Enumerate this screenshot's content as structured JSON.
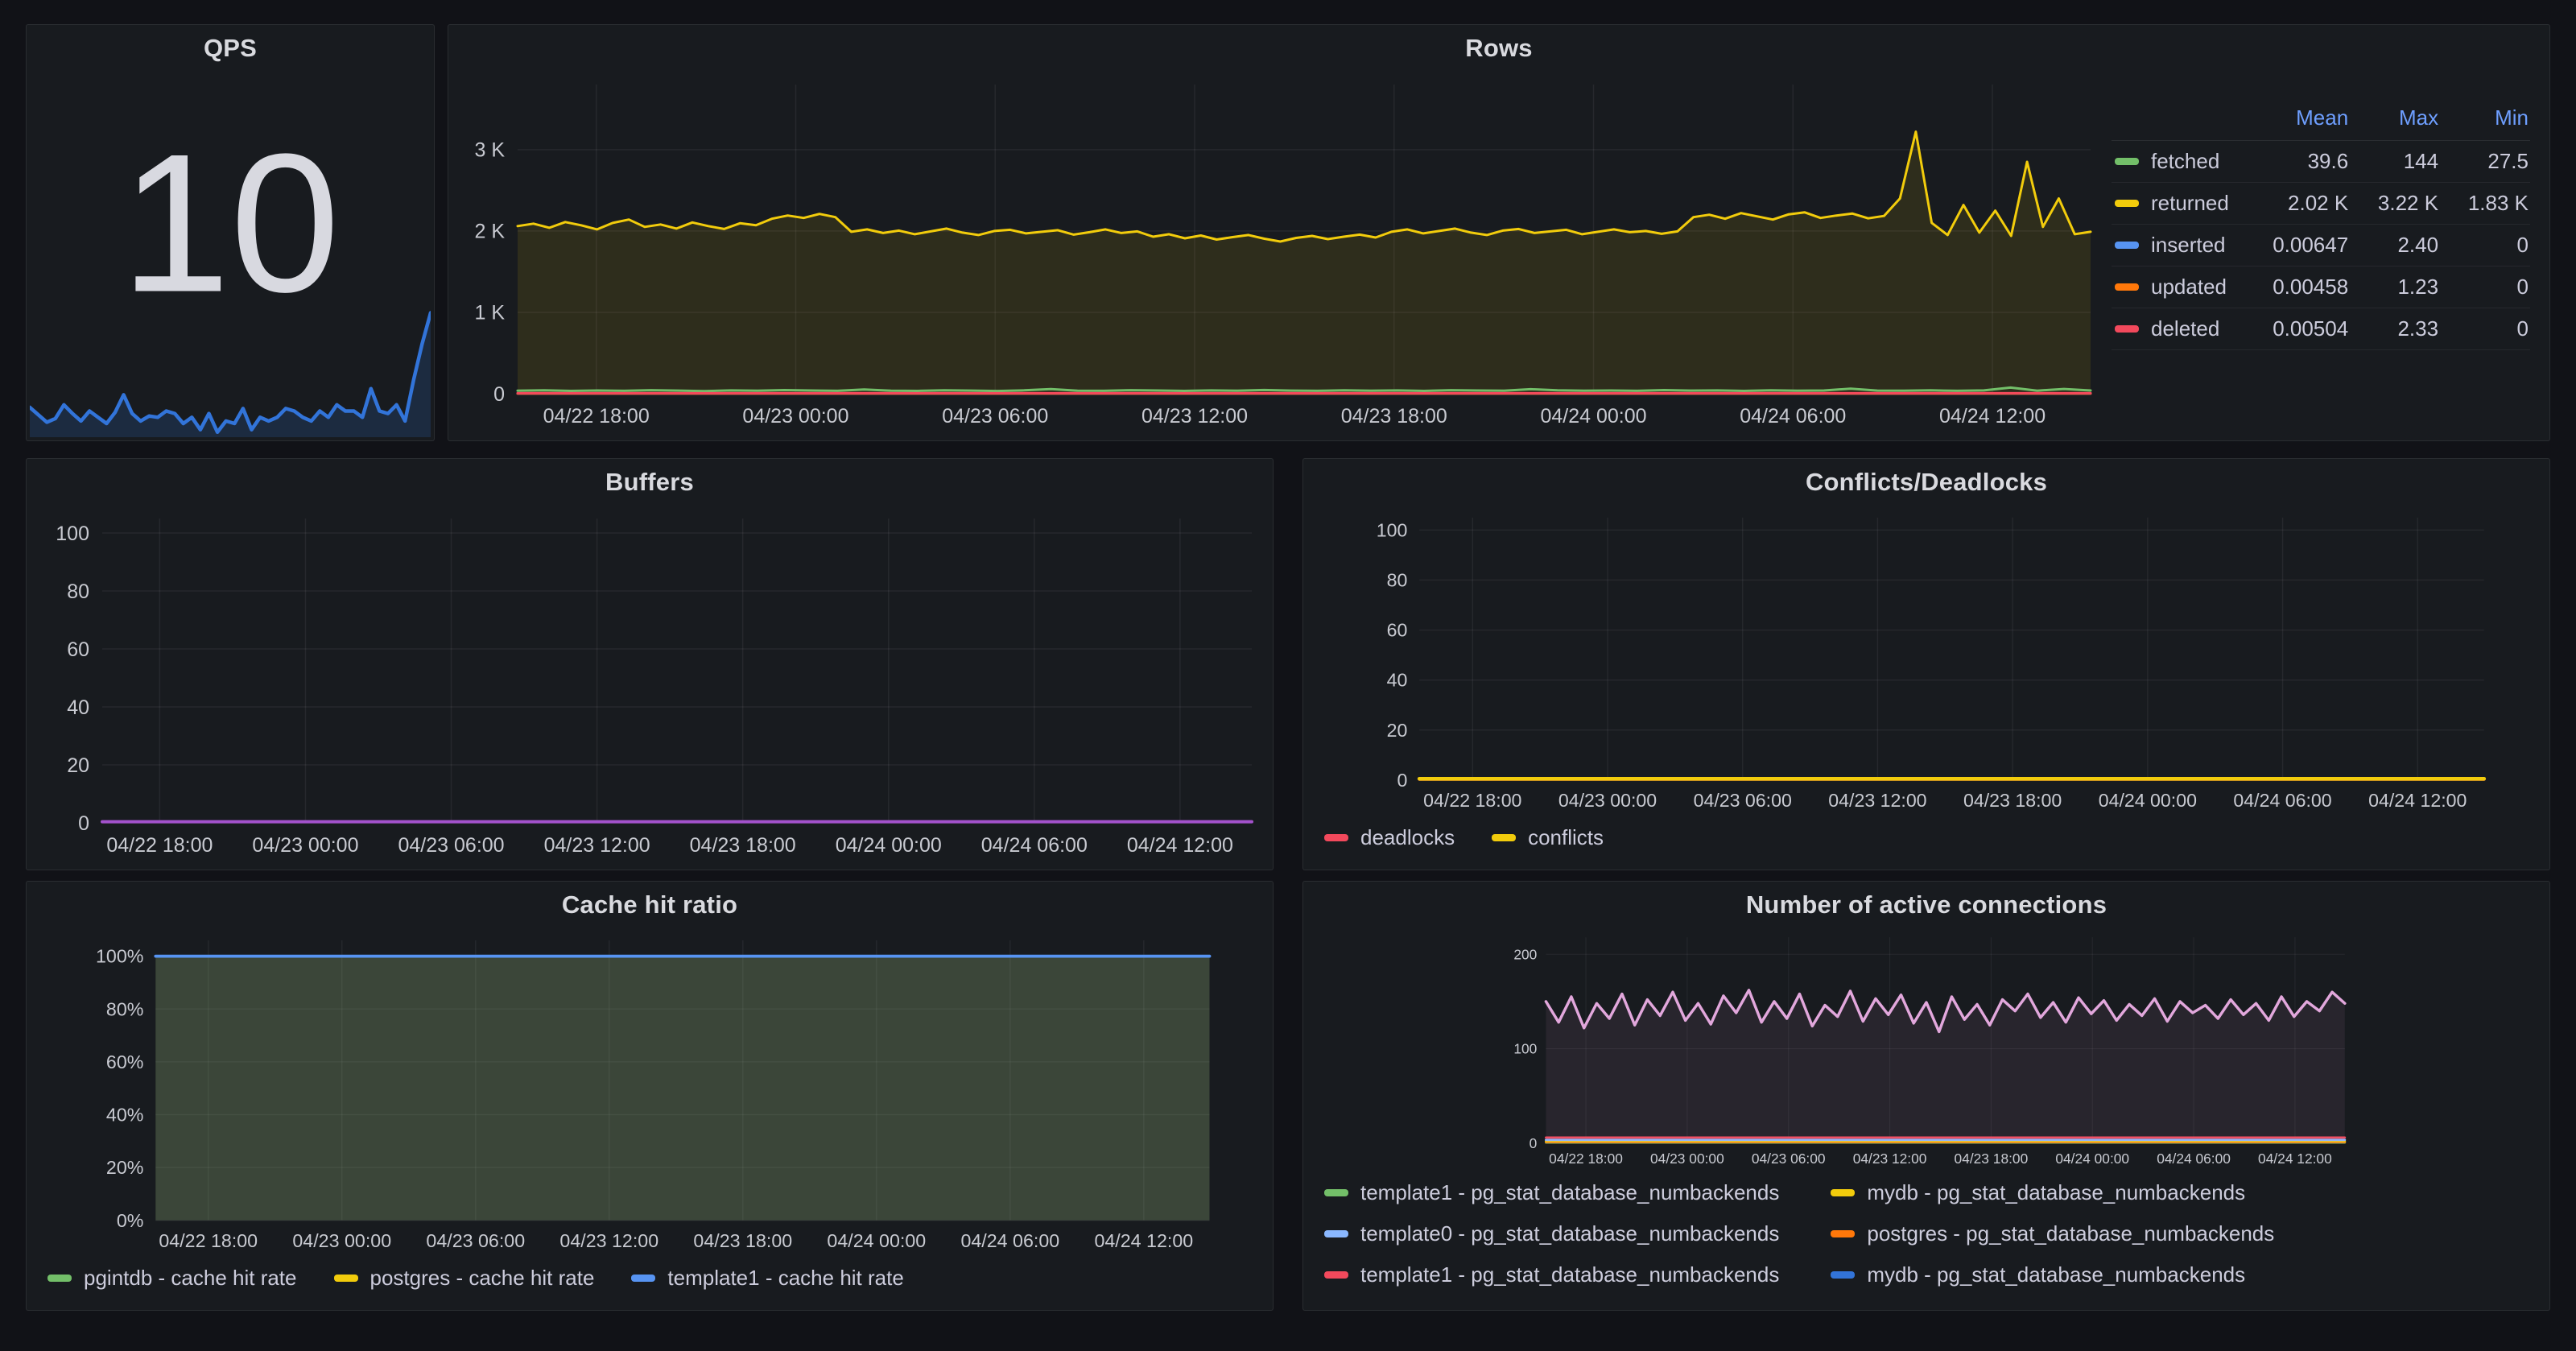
{
  "theme": {
    "page_bg": "#111217",
    "panel_bg": "#181B1F",
    "panel_border": "rgba(204,204,220,0.10)",
    "title_color": "#D9DADF",
    "text_color": "#CCCCDC",
    "axis_color": "#C8CAD1",
    "grid_color": "rgba(204,204,220,0.08)",
    "table_header_color": "#6E9FFF",
    "stat_color": "#D8D9E0",
    "qps_line": "#3274D9"
  },
  "chart_data": [
    {
      "id": "qps",
      "type": "line",
      "title": "QPS",
      "stat_value": "10",
      "ylim": [
        0,
        10.8
      ],
      "margins": [
        0,
        6,
        0,
        2
      ],
      "series": [
        {
          "name": "qps",
          "color": "#3274D9",
          "w": 4.5,
          "fill": "rgba(50,116,217,0.18)",
          "values": [
            2.4,
            1.8,
            1.2,
            1.5,
            2.6,
            1.9,
            1.3,
            2.1,
            1.6,
            1.1,
            2.0,
            3.4,
            1.9,
            1.3,
            1.7,
            1.6,
            2.1,
            1.9,
            1.1,
            1.6,
            0.6,
            1.9,
            0.4,
            1.3,
            1.1,
            2.3,
            0.6,
            1.6,
            1.3,
            1.6,
            2.3,
            2.1,
            1.6,
            1.3,
            2.1,
            1.6,
            2.6,
            2.1,
            2.1,
            1.6,
            3.9,
            2.1,
            1.9,
            2.6,
            1.3,
            4.6,
            7.5,
            10.0
          ]
        }
      ]
    },
    {
      "id": "rows",
      "type": "line",
      "title": "Rows",
      "ylim": [
        0,
        3800
      ],
      "margins": [
        80,
        16,
        20,
        52
      ],
      "xtick_start": 0.05,
      "xtick_step": 0.1268,
      "x_ticks": [
        "04/22 18:00",
        "04/23 00:00",
        "04/23 06:00",
        "04/23 12:00",
        "04/23 18:00",
        "04/24 00:00",
        "04/24 06:00",
        "04/24 12:00"
      ],
      "y_ticks": [
        {
          "v": 0,
          "label": "0"
        },
        {
          "v": 1000,
          "label": "1 K"
        },
        {
          "v": 2000,
          "label": "2 K"
        },
        {
          "v": 3000,
          "label": "3 K"
        }
      ],
      "series": [
        {
          "name": "returned",
          "color": "#F2CC0C",
          "w": 3,
          "fill": "rgba(242,204,12,0.10)",
          "values": [
            2060,
            2090,
            2040,
            2110,
            2070,
            2020,
            2100,
            2140,
            2050,
            2080,
            2030,
            2105,
            2060,
            2025,
            2095,
            2070,
            2150,
            2190,
            2160,
            2210,
            2170,
            1990,
            2020,
            1975,
            2005,
            1960,
            1995,
            2030,
            1980,
            1950,
            2000,
            2015,
            1970,
            1990,
            2010,
            1955,
            1985,
            2020,
            1975,
            1995,
            1930,
            1960,
            1910,
            1945,
            1895,
            1925,
            1950,
            1905,
            1870,
            1915,
            1940,
            1900,
            1930,
            1955,
            1920,
            1990,
            2020,
            1970,
            2000,
            2030,
            1980,
            1950,
            2005,
            2025,
            1975,
            1995,
            2015,
            1960,
            1990,
            2020,
            1985,
            2000,
            1965,
            1995,
            2170,
            2200,
            2150,
            2220,
            2180,
            2140,
            2205,
            2230,
            2160,
            2190,
            2215,
            2155,
            2185,
            2400,
            3220,
            2100,
            1950,
            2320,
            1980,
            2250,
            1940,
            2850,
            2050,
            2400,
            1960,
            1990
          ]
        },
        {
          "name": "fetched",
          "color": "#73BF69",
          "w": 3,
          "values": [
            38,
            42,
            35,
            40,
            36,
            44,
            39,
            33,
            41,
            37,
            45,
            40,
            36,
            52,
            38,
            35,
            43,
            39,
            34,
            42,
            57,
            38,
            36,
            44,
            40,
            35,
            41,
            38,
            46,
            39,
            36,
            43,
            37,
            41,
            35,
            44,
            40,
            38,
            55,
            42,
            37,
            40,
            36,
            45,
            39,
            41,
            35,
            43,
            38,
            40,
            62,
            39,
            37,
            42,
            36,
            41,
            75,
            38,
            58,
            40
          ]
        },
        {
          "name": "inserted",
          "color": "#5794F2",
          "w": 3,
          "values": [
            3,
            3
          ]
        },
        {
          "name": "updated",
          "color": "#FF780A",
          "w": 3,
          "values": [
            2,
            2
          ]
        },
        {
          "name": "deleted",
          "color": "#F2495C",
          "w": 3,
          "values": [
            6,
            6
          ]
        }
      ],
      "legend_table": {
        "headers": [
          "Mean",
          "Max",
          "Min"
        ],
        "rows": [
          {
            "name": "fetched",
            "color": "#73BF69",
            "mean": "39.6",
            "max": "144",
            "min": "27.5"
          },
          {
            "name": "returned",
            "color": "#F2CC0C",
            "mean": "2.02 K",
            "max": "3.22 K",
            "min": "1.83 K"
          },
          {
            "name": "inserted",
            "color": "#5794F2",
            "mean": "0.00647",
            "max": "2.40",
            "min": "0"
          },
          {
            "name": "updated",
            "color": "#FF780A",
            "mean": "0.00458",
            "max": "1.23",
            "min": "0"
          },
          {
            "name": "deleted",
            "color": "#F2495C",
            "mean": "0.00504",
            "max": "2.33",
            "min": "0"
          }
        ]
      }
    },
    {
      "id": "buffers",
      "type": "line",
      "title": "Buffers",
      "ylim": [
        0,
        105
      ],
      "margins": [
        88,
        16,
        20,
        52
      ],
      "xtick_start": 0.05,
      "xtick_step": 0.1268,
      "x_ticks": [
        "04/22 18:00",
        "04/23 00:00",
        "04/23 06:00",
        "04/23 12:00",
        "04/23 18:00",
        "04/24 00:00",
        "04/24 06:00",
        "04/24 12:00"
      ],
      "y_ticks": [
        {
          "v": 0,
          "label": "0"
        },
        {
          "v": 20,
          "label": "20"
        },
        {
          "v": 40,
          "label": "40"
        },
        {
          "v": 60,
          "label": "60"
        },
        {
          "v": 80,
          "label": "80"
        },
        {
          "v": 100,
          "label": "100"
        }
      ],
      "series": [
        {
          "name": "buffers",
          "color": "#A352CC",
          "w": 4,
          "values": [
            0.4,
            0.4
          ]
        }
      ]
    },
    {
      "id": "conflicts",
      "type": "line",
      "title": "Conflicts/Deadlocks",
      "ylim": [
        0,
        105
      ],
      "margins": [
        88,
        16,
        20,
        52
      ],
      "xtick_start": 0.05,
      "xtick_step": 0.1268,
      "x_ticks": [
        "04/22 18:00",
        "04/23 00:00",
        "04/23 06:00",
        "04/23 12:00",
        "04/23 18:00",
        "04/24 00:00",
        "04/24 06:00",
        "04/24 12:00"
      ],
      "y_ticks": [
        {
          "v": 0,
          "label": "0"
        },
        {
          "v": 20,
          "label": "20"
        },
        {
          "v": 40,
          "label": "40"
        },
        {
          "v": 60,
          "label": "60"
        },
        {
          "v": 80,
          "label": "80"
        },
        {
          "v": 100,
          "label": "100"
        }
      ],
      "series": [
        {
          "name": "deadlocks",
          "color": "#F2495C",
          "w": 4,
          "values": [
            0.3,
            0.3
          ]
        },
        {
          "name": "conflicts",
          "color": "#F2CC0C",
          "w": 5,
          "values": [
            0.5,
            0.5
          ]
        }
      ],
      "legend": {
        "layout": "row",
        "items": [
          {
            "label": "deadlocks",
            "color": "#F2495C"
          },
          {
            "label": "conflicts",
            "color": "#F2CC0C"
          }
        ]
      }
    },
    {
      "id": "cache",
      "type": "line",
      "title": "Cache hit ratio",
      "ylim": [
        0,
        106
      ],
      "margins": [
        108,
        16,
        20,
        52
      ],
      "xtick_start": 0.05,
      "xtick_step": 0.1268,
      "x_ticks": [
        "04/22 18:00",
        "04/23 00:00",
        "04/23 06:00",
        "04/23 12:00",
        "04/23 18:00",
        "04/24 00:00",
        "04/24 06:00",
        "04/24 12:00"
      ],
      "y_ticks": [
        {
          "v": 0,
          "label": "0%"
        },
        {
          "v": 20,
          "label": "20%"
        },
        {
          "v": 40,
          "label": "40%"
        },
        {
          "v": 60,
          "label": "60%"
        },
        {
          "v": 80,
          "label": "80%"
        },
        {
          "v": 100,
          "label": "100%"
        }
      ],
      "series": [
        {
          "name": "pgintdb - cache hit rate",
          "color": "#73BF69",
          "w": 3,
          "fill": "rgba(115,191,105,0.12)",
          "values": [
            100,
            100
          ]
        },
        {
          "name": "postgres - cache hit rate",
          "color": "#F2CC0C",
          "w": 3,
          "fill": "rgba(242,204,12,0.10)",
          "values": [
            100,
            100
          ]
        },
        {
          "name": "template1 - cache hit rate",
          "color": "#5794F2",
          "w": 4,
          "fill": "rgba(87,148,242,0.10)",
          "values": [
            100,
            100
          ]
        }
      ],
      "legend": {
        "layout": "row",
        "items": [
          {
            "label": "pgintdb - cache hit rate",
            "color": "#73BF69"
          },
          {
            "label": "postgres - cache hit rate",
            "color": "#F2CC0C"
          },
          {
            "label": "template1 - cache hit rate",
            "color": "#5794F2"
          }
        ]
      }
    },
    {
      "id": "connections",
      "type": "line",
      "title": "Number of active connections",
      "ylim": [
        0,
        218
      ],
      "margins": [
        88,
        16,
        20,
        52
      ],
      "xtick_start": 0.05,
      "xtick_step": 0.1268,
      "x_ticks": [
        "04/22 18:00",
        "04/23 00:00",
        "04/23 06:00",
        "04/23 12:00",
        "04/23 18:00",
        "04/24 00:00",
        "04/24 06:00",
        "04/24 12:00"
      ],
      "y_ticks": [
        {
          "v": 0,
          "label": "0"
        },
        {
          "v": 100,
          "label": "100"
        },
        {
          "v": 200,
          "label": "200"
        }
      ],
      "series": [
        {
          "name": "template1 - pg_stat_database_numbackends",
          "color": "#73BF69",
          "w": 4,
          "values": [
            0.6,
            0.6
          ]
        },
        {
          "name": "postgres - pg_stat_database_numbackends",
          "color": "#FF780A",
          "w": 4,
          "values": [
            1.2,
            1.2
          ]
        },
        {
          "name": "mydb - pg_stat_database_numbackends",
          "color": "#F2CC0C",
          "w": 4,
          "values": [
            2.2,
            2.2
          ]
        },
        {
          "name": "template0 - pg_stat_database_numbackends",
          "color": "#8AB8FF",
          "w": 4,
          "values": [
            3.5,
            3.5
          ]
        },
        {
          "name": "template1 - pg_stat_database_numbackends",
          "color": "#F2495C",
          "w": 4,
          "values": [
            6,
            6
          ]
        },
        {
          "name": "mydb - pg_stat_database_numbackends",
          "color": "#E2A7DC",
          "w": 5,
          "fill": "rgba(226,167,220,0.08)",
          "values": [
            150,
            128,
            155,
            122,
            148,
            132,
            158,
            125,
            152,
            135,
            160,
            130,
            148,
            126,
            156,
            138,
            162,
            128,
            150,
            132,
            158,
            124,
            146,
            134,
            161,
            129,
            153,
            136,
            157,
            127,
            149,
            118,
            155,
            131,
            147,
            125,
            152,
            140,
            158,
            133,
            149,
            128,
            154,
            137,
            151,
            130,
            147,
            135,
            153,
            129,
            150,
            138,
            146,
            132,
            152,
            136,
            148,
            130,
            155,
            134,
            150,
            140,
            160,
            148
          ]
        }
      ],
      "legend": {
        "layout": "grid",
        "items": [
          {
            "label": "template1 - pg_stat_database_numbackends",
            "color": "#73BF69"
          },
          {
            "label": "mydb - pg_stat_database_numbackends",
            "color": "#F2CC0C"
          },
          {
            "label": "template0 - pg_stat_database_numbackends",
            "color": "#8AB8FF"
          },
          {
            "label": "postgres - pg_stat_database_numbackends",
            "color": "#FF780A"
          },
          {
            "label": "template1 - pg_stat_database_numbackends",
            "color": "#F2495C"
          },
          {
            "label": "mydb - pg_stat_database_numbackends",
            "color": "#3274D9"
          }
        ]
      }
    }
  ]
}
